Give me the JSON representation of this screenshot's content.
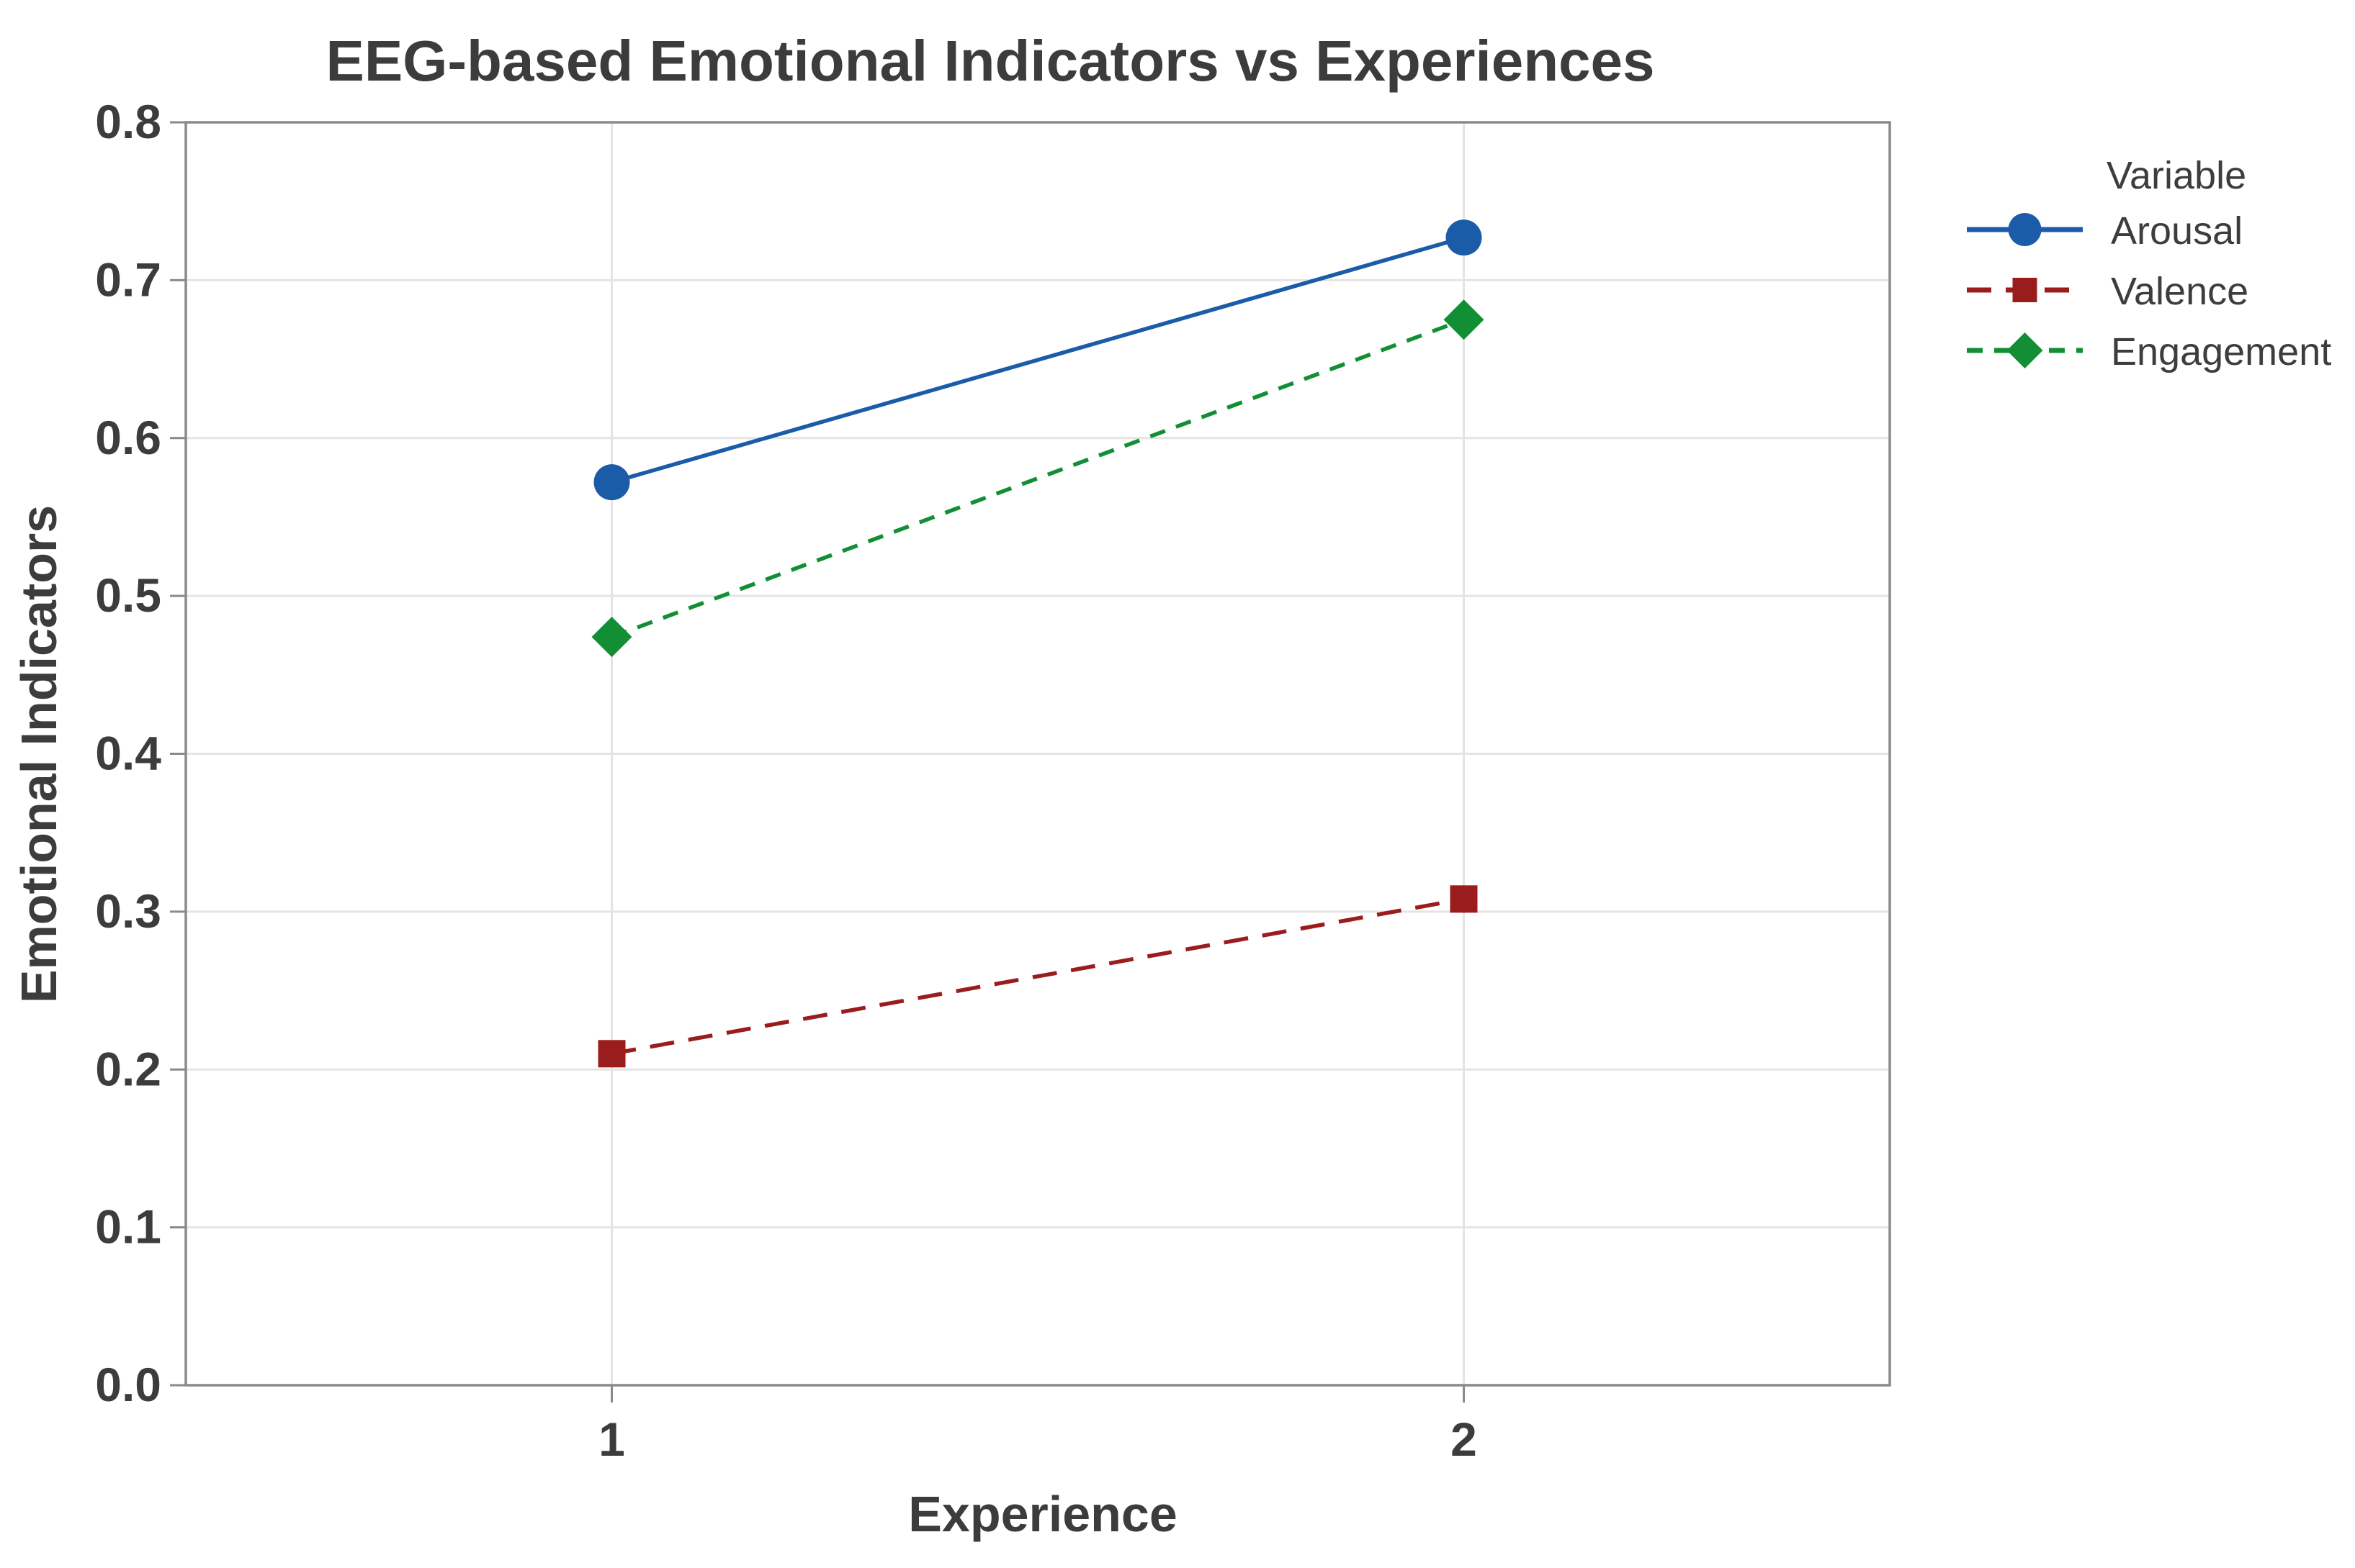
{
  "chart_data": {
    "type": "line",
    "title": "EEG-based Emotional Indicators vs Experiences",
    "xlabel": "Experience",
    "ylabel": "Emotional Indicators",
    "legend_title": "Variable",
    "legend_position": "right",
    "grid": true,
    "x": [
      1,
      2
    ],
    "xticks": [
      "1",
      "2"
    ],
    "yticks": [
      "0.0",
      "0.1",
      "0.2",
      "0.3",
      "0.4",
      "0.5",
      "0.6",
      "0.7",
      "0.8"
    ],
    "xlim": [
      0.5,
      2.5
    ],
    "ylim": [
      0.0,
      0.8
    ],
    "series": [
      {
        "name": "Arousal",
        "values": [
          0.572,
          0.727
        ],
        "color": "#1a5ca8",
        "marker": "circle",
        "line_style": "solid"
      },
      {
        "name": "Valence",
        "values": [
          0.21,
          0.308
        ],
        "color": "#9b1c1c",
        "marker": "square",
        "line_style": "long-dash"
      },
      {
        "name": "Engagement",
        "values": [
          0.474,
          0.675
        ],
        "color": "#128f34",
        "marker": "diamond",
        "line_style": "dash"
      }
    ],
    "text_color": "#3c3c3c",
    "grid_color": "#e4e4e4",
    "axis_color": "#8a8a8a",
    "background_color": "#ffffff"
  }
}
